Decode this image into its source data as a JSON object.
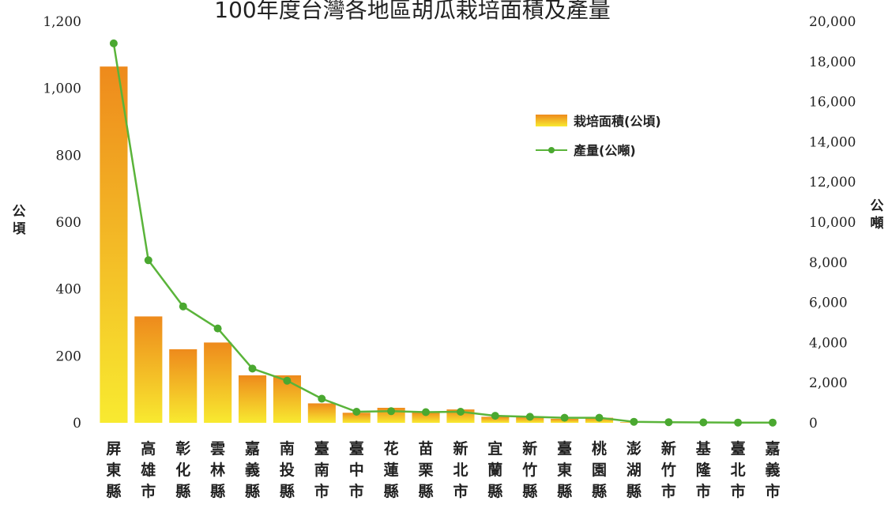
{
  "chart_data": {
    "type": "bar",
    "title": "100年度台灣各地區胡瓜栽培面積及產量",
    "ylabel": "公頃",
    "y2label": "公噸",
    "ylim": [
      0,
      1200
    ],
    "y2lim": [
      0,
      20000
    ],
    "yticks": [
      "0",
      "200",
      "400",
      "600",
      "800",
      "1,000",
      "1,200"
    ],
    "y2ticks": [
      "0",
      "2,000",
      "4,000",
      "6,000",
      "8,000",
      "10,000",
      "12,000",
      "14,000",
      "16,000",
      "18,000",
      "20,000"
    ],
    "categories": [
      "屏東縣",
      "高雄市",
      "彰化縣",
      "雲林縣",
      "嘉義縣",
      "南投縣",
      "臺南市",
      "臺中市",
      "花蓮縣",
      "苗栗縣",
      "新北市",
      "宜蘭縣",
      "新竹縣",
      "臺東縣",
      "桃園縣",
      "澎湖縣",
      "新竹市",
      "基隆市",
      "臺北市",
      "嘉義市"
    ],
    "series": [
      {
        "name": "栽培面積(公頃)",
        "type": "bar",
        "axis": "left",
        "values": [
          1065,
          318,
          220,
          240,
          142,
          142,
          58,
          30,
          45,
          33,
          40,
          18,
          18,
          12,
          15,
          2,
          1,
          1,
          0,
          0
        ]
      },
      {
        "name": "產量(公噸)",
        "type": "line",
        "axis": "right",
        "values": [
          18900,
          8100,
          5800,
          4700,
          2700,
          2100,
          1200,
          550,
          580,
          530,
          550,
          350,
          300,
          250,
          250,
          50,
          30,
          20,
          10,
          10
        ]
      }
    ],
    "legend": "top-right",
    "grid": false,
    "colors": {
      "bar_top": "#ee8a1c",
      "bar_bottom": "#f8ea30",
      "line": "#5ab43a",
      "marker": "#4aa830"
    }
  }
}
